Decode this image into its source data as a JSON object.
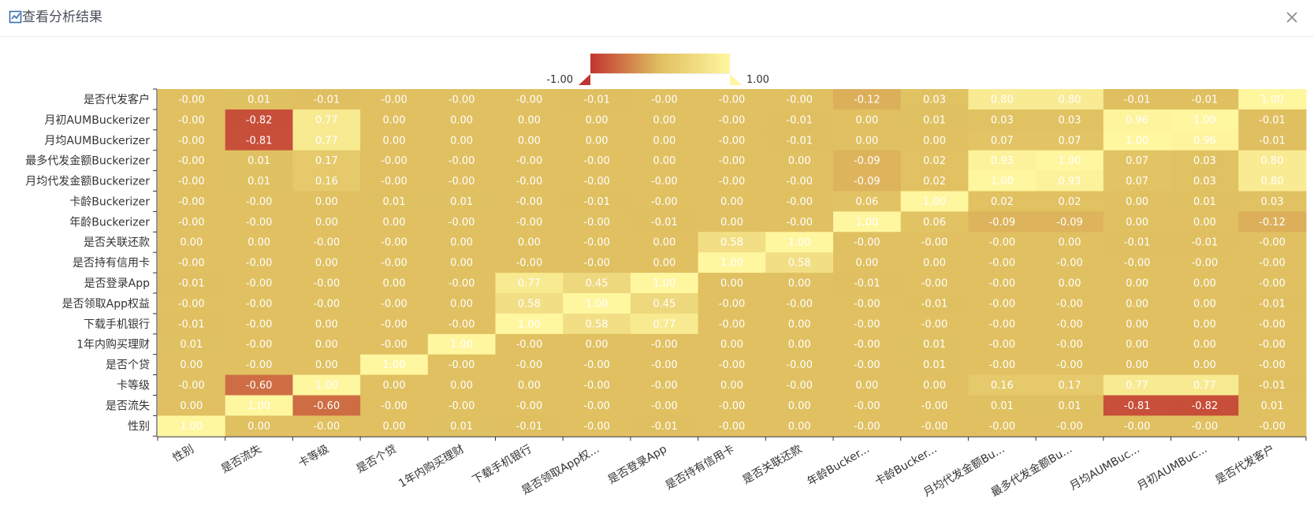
{
  "dialog": {
    "title": "查看分析结果",
    "icon": "chart-analysis-icon",
    "close_icon": "close-icon"
  },
  "colors": {
    "low": "#c23531",
    "mid": "#e0c060",
    "high": "#fff6a0"
  },
  "chart_data": {
    "type": "heatmap",
    "legend": {
      "min_label": "-1.00",
      "max_label": "1.00",
      "min": -1,
      "max": 1,
      "placement": "top-center"
    },
    "rows": [
      "是否代发客户",
      "月初AUMBuckerizer",
      "月均AUMBuckerizer",
      "最多代发金额Buckerizer",
      "月均代发金额Buckerizer",
      "卡龄Buckerizer",
      "年龄Buckerizer",
      "是否关联还款",
      "是否持有信用卡",
      "是否登录App",
      "是否领取App权益",
      "下载手机银行",
      "1年内购买理财",
      "是否个贷",
      "卡等级",
      "是否流失",
      "性别"
    ],
    "columns": [
      "性别",
      "是否流失",
      "卡等级",
      "是否个贷",
      "1年内购买理财",
      "下载手机银行",
      "是否领取App权...",
      "是否登录App",
      "是否持有信用卡",
      "是否关联还款",
      "年龄Bucker...",
      "卡龄Bucker...",
      "月均代发金额Bu...",
      "最多代发金额Bu...",
      "月均AUMBuc...",
      "月初AUMBuc...",
      "是否代发客户"
    ],
    "values": [
      [
        -0.0,
        0.01,
        -0.01,
        -0.0,
        -0.0,
        -0.0,
        -0.01,
        -0.0,
        -0.0,
        -0.0,
        -0.12,
        0.03,
        0.8,
        0.8,
        -0.01,
        -0.01,
        1.0
      ],
      [
        -0.0,
        -0.82,
        0.77,
        0.0,
        0.0,
        0.0,
        0.0,
        0.0,
        -0.0,
        -0.01,
        0.0,
        0.01,
        0.03,
        0.03,
        0.96,
        1.0,
        -0.01
      ],
      [
        -0.0,
        -0.81,
        0.77,
        0.0,
        0.0,
        0.0,
        0.0,
        0.0,
        -0.0,
        -0.01,
        0.0,
        0.0,
        0.07,
        0.07,
        1.0,
        0.96,
        -0.01
      ],
      [
        -0.0,
        0.01,
        0.17,
        -0.0,
        -0.0,
        -0.0,
        -0.0,
        0.0,
        -0.0,
        0.0,
        -0.09,
        0.02,
        0.93,
        1.0,
        0.07,
        0.03,
        0.8
      ],
      [
        -0.0,
        0.01,
        0.16,
        -0.0,
        -0.0,
        -0.0,
        -0.0,
        -0.0,
        -0.0,
        -0.0,
        -0.09,
        0.02,
        1.0,
        0.93,
        0.07,
        0.03,
        0.8
      ],
      [
        -0.0,
        -0.0,
        0.0,
        0.01,
        0.01,
        -0.0,
        -0.01,
        -0.0,
        0.0,
        -0.0,
        0.06,
        1.0,
        0.02,
        0.02,
        0.0,
        0.01,
        0.03
      ],
      [
        -0.0,
        -0.0,
        0.0,
        0.0,
        -0.0,
        -0.0,
        -0.0,
        -0.01,
        0.0,
        -0.0,
        1.0,
        0.06,
        -0.09,
        -0.09,
        0.0,
        0.0,
        -0.12
      ],
      [
        0.0,
        0.0,
        -0.0,
        -0.0,
        0.0,
        0.0,
        -0.0,
        0.0,
        0.58,
        1.0,
        -0.0,
        -0.0,
        -0.0,
        0.0,
        -0.01,
        -0.01,
        -0.0
      ],
      [
        -0.0,
        -0.0,
        0.0,
        -0.0,
        0.0,
        -0.0,
        -0.0,
        0.0,
        1.0,
        0.58,
        0.0,
        0.0,
        -0.0,
        -0.0,
        -0.0,
        -0.0,
        -0.0
      ],
      [
        -0.01,
        -0.0,
        -0.0,
        0.0,
        -0.0,
        0.77,
        0.45,
        1.0,
        0.0,
        0.0,
        -0.01,
        -0.0,
        -0.0,
        0.0,
        0.0,
        0.0,
        -0.0
      ],
      [
        -0.0,
        -0.0,
        -0.0,
        -0.0,
        0.0,
        0.58,
        1.0,
        0.45,
        -0.0,
        -0.0,
        -0.0,
        -0.01,
        -0.0,
        -0.0,
        0.0,
        0.0,
        -0.01
      ],
      [
        -0.01,
        -0.0,
        0.0,
        -0.0,
        -0.0,
        1.0,
        0.58,
        0.77,
        -0.0,
        0.0,
        -0.0,
        -0.0,
        -0.0,
        -0.0,
        0.0,
        0.0,
        -0.0
      ],
      [
        0.01,
        -0.0,
        0.0,
        -0.0,
        1.0,
        -0.0,
        0.0,
        -0.0,
        0.0,
        0.0,
        -0.0,
        0.01,
        -0.0,
        -0.0,
        0.0,
        0.0,
        -0.0
      ],
      [
        0.0,
        -0.0,
        0.0,
        1.0,
        -0.0,
        -0.0,
        -0.0,
        -0.0,
        -0.0,
        -0.0,
        -0.0,
        0.01,
        -0.0,
        -0.0,
        0.0,
        0.0,
        -0.0
      ],
      [
        -0.0,
        -0.6,
        1.0,
        0.0,
        0.0,
        0.0,
        -0.0,
        -0.0,
        0.0,
        -0.0,
        0.0,
        0.0,
        0.16,
        0.17,
        0.77,
        0.77,
        -0.01
      ],
      [
        0.0,
        1.0,
        -0.6,
        -0.0,
        -0.0,
        -0.0,
        -0.0,
        -0.0,
        -0.0,
        0.0,
        -0.0,
        -0.0,
        0.01,
        0.01,
        -0.81,
        -0.82,
        0.01
      ],
      [
        1.0,
        0.0,
        -0.0,
        0.0,
        0.01,
        -0.01,
        -0.0,
        -0.01,
        -0.0,
        0.0,
        -0.0,
        -0.0,
        -0.0,
        -0.0,
        -0.0,
        -0.0,
        -0.0
      ]
    ]
  }
}
